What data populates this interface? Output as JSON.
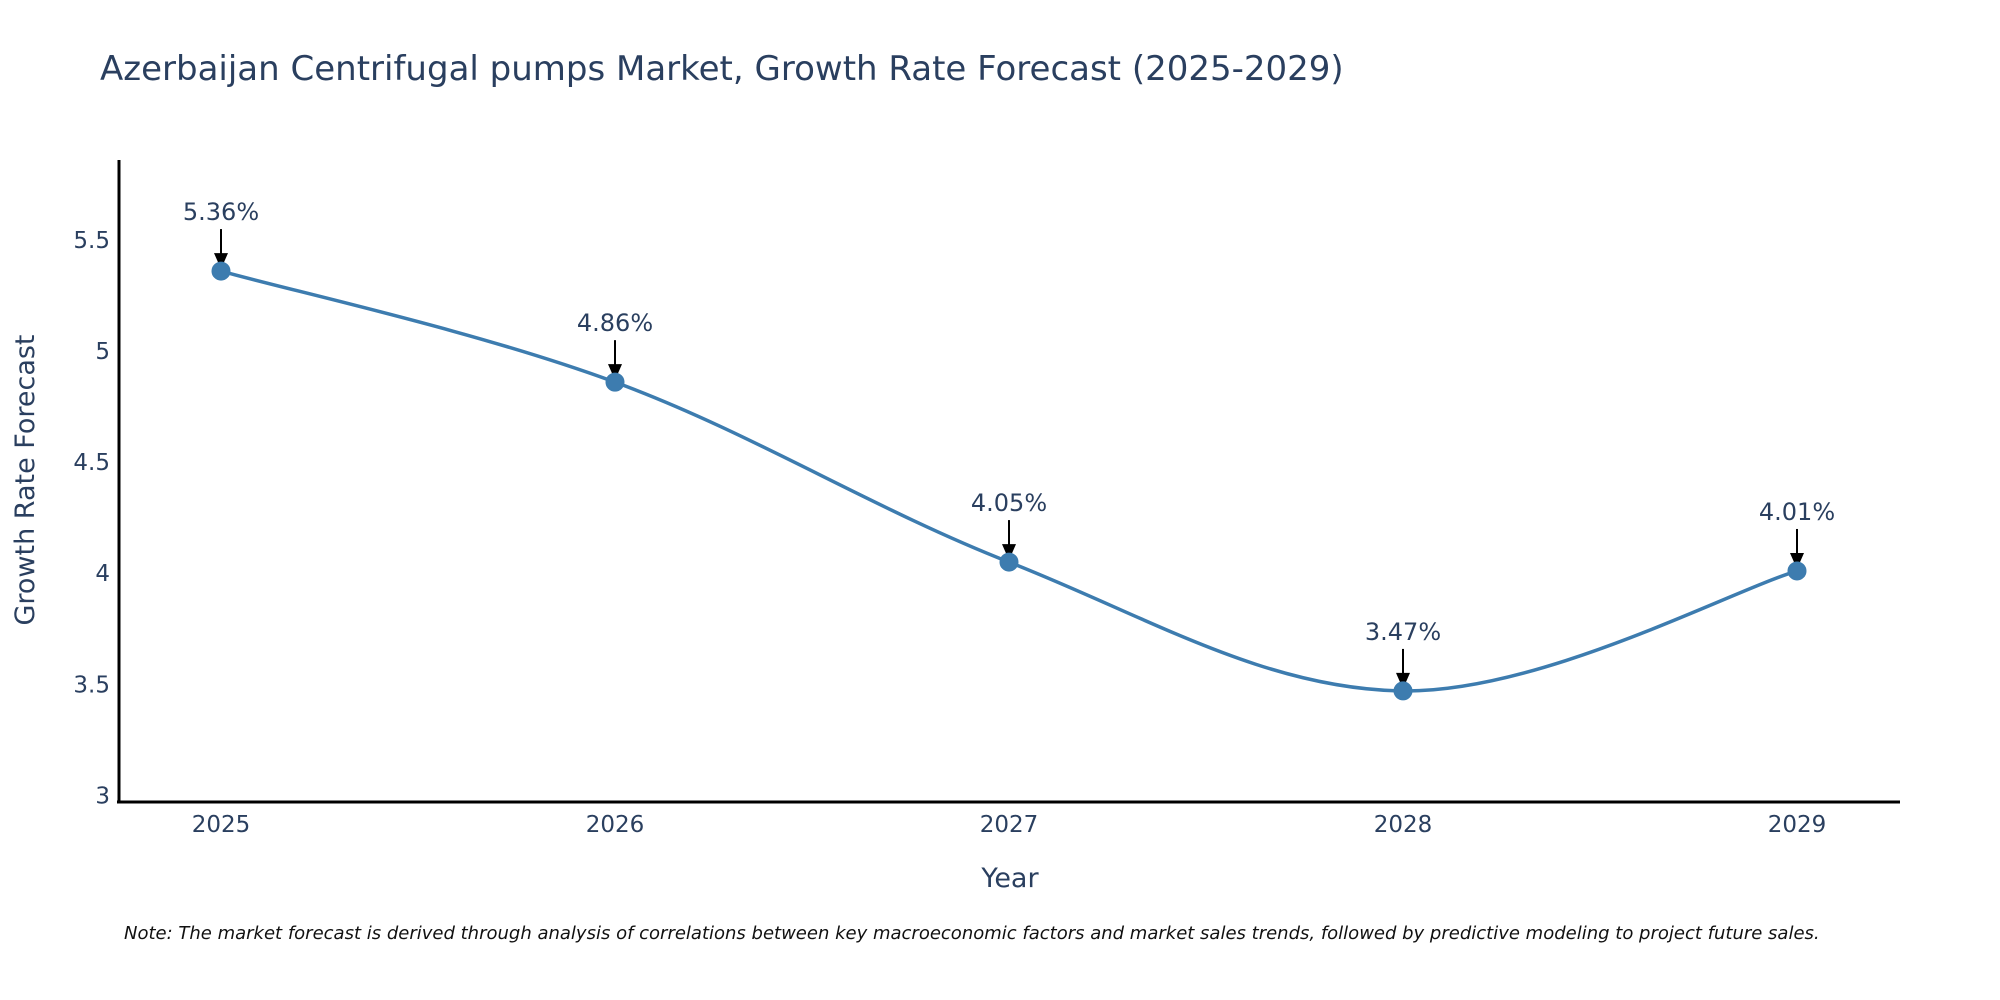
{
  "chart_data": {
    "type": "line",
    "title": "Azerbaijan Centrifugal pumps Market, Growth Rate Forecast (2025-2029)",
    "xlabel": "Year",
    "ylabel": "Growth Rate Forecast",
    "categories": [
      "2025",
      "2026",
      "2027",
      "2028",
      "2029"
    ],
    "values": [
      5.36,
      4.86,
      4.05,
      3.47,
      4.01
    ],
    "data_labels": [
      "5.36%",
      "4.86%",
      "4.05%",
      "3.47%",
      "4.01%"
    ],
    "y_ticks": [
      3,
      3.5,
      4,
      4.5,
      5,
      5.5
    ],
    "y_tick_labels": [
      "3",
      "3.5",
      "4",
      "4.5",
      "5",
      "5.5"
    ],
    "ylim": [
      2.97,
      5.86
    ],
    "grid": false,
    "line_shape": "spline",
    "note": "Note: The market forecast is derived through analysis of correlations between key macroeconomic factors and market sales trends, followed by predictive modeling to project future sales.",
    "colors": {
      "series": "#3d7caf",
      "text": "#2a3f5f",
      "axis": "#000000"
    }
  }
}
